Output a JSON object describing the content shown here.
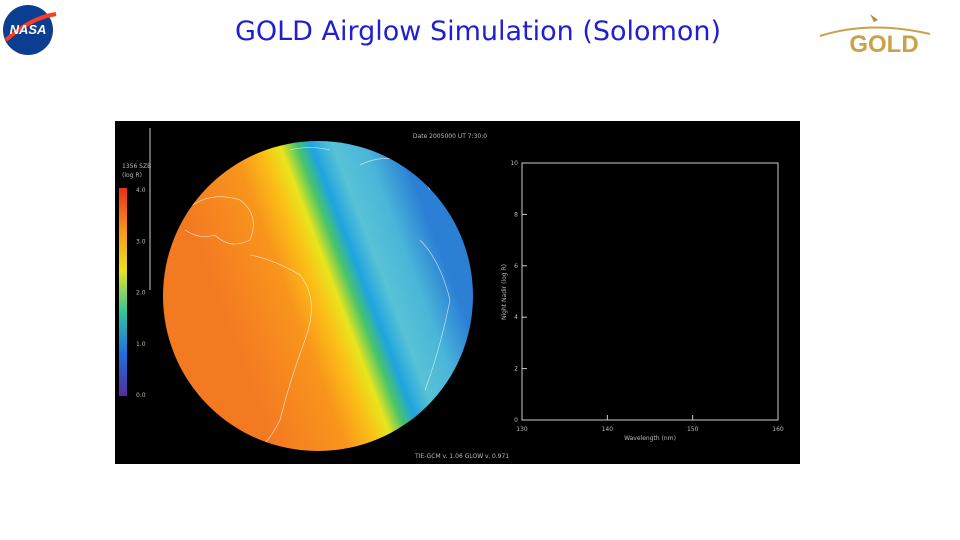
{
  "header": {
    "title": "GOLD Airglow Simulation (Solomon)",
    "left_logo": "NASA",
    "right_logo": "GOLD"
  },
  "figure": {
    "date_label": "Date 2005000  UT 7:30:0",
    "colorbar_title": "1356 SZB",
    "colorbar_unit": "(log R)",
    "colorbar_ticks": [
      "4.0",
      "3.0",
      "2.0",
      "1.0",
      "0.0"
    ],
    "y_axis_label": "Night Nadir (log R)",
    "y_ticks": [
      "0",
      "2",
      "4",
      "6",
      "8",
      "10"
    ],
    "x_axis_label": "Wavelength (nm)",
    "x_ticks": [
      "130",
      "140",
      "150",
      "160"
    ],
    "footer": "TIE-GCM v. 1.06  GLOW v. 0.971"
  }
}
